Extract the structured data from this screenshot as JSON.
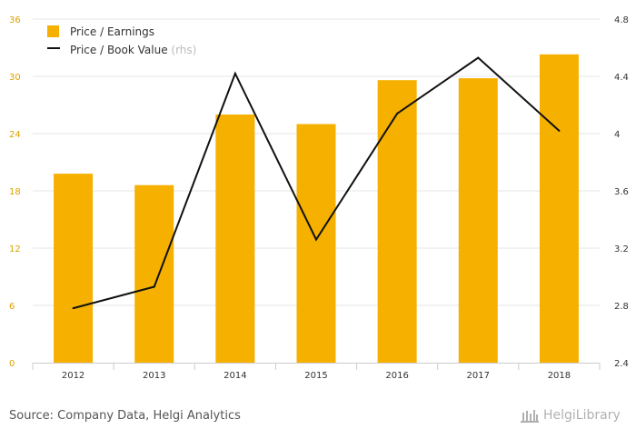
{
  "chart_data": {
    "type": "bar",
    "categories": [
      "2012",
      "2013",
      "2014",
      "2015",
      "2016",
      "2017",
      "2018"
    ],
    "series": [
      {
        "name": "Price / Earnings",
        "type": "bar",
        "axis": "left",
        "values": [
          19.8,
          18.6,
          26.0,
          25.0,
          29.6,
          29.8,
          32.3
        ]
      },
      {
        "name": "Price / Book Value",
        "suffix": "(rhs)",
        "type": "line",
        "axis": "right",
        "values": [
          2.78,
          2.93,
          4.42,
          3.26,
          4.14,
          4.53,
          4.02
        ]
      }
    ],
    "y_left": {
      "min": 0,
      "max": 36,
      "ticks": [
        "0",
        "6",
        "12",
        "18",
        "24",
        "30",
        "36"
      ]
    },
    "y_right": {
      "min": 2.4,
      "max": 4.8,
      "ticks": [
        "2.4",
        "2.8",
        "3.2",
        "3.6",
        "4",
        "4.4",
        "4.8"
      ]
    },
    "grid": true,
    "legend_position": "top-left",
    "colors": {
      "bar": "#f5b000",
      "line": "#111111",
      "grid": "#e6e6e6",
      "left_ticks": "#d9a400"
    }
  },
  "footer": {
    "source": "Source: Company Data, Helgi Analytics",
    "brand": "HelgiLibrary"
  }
}
